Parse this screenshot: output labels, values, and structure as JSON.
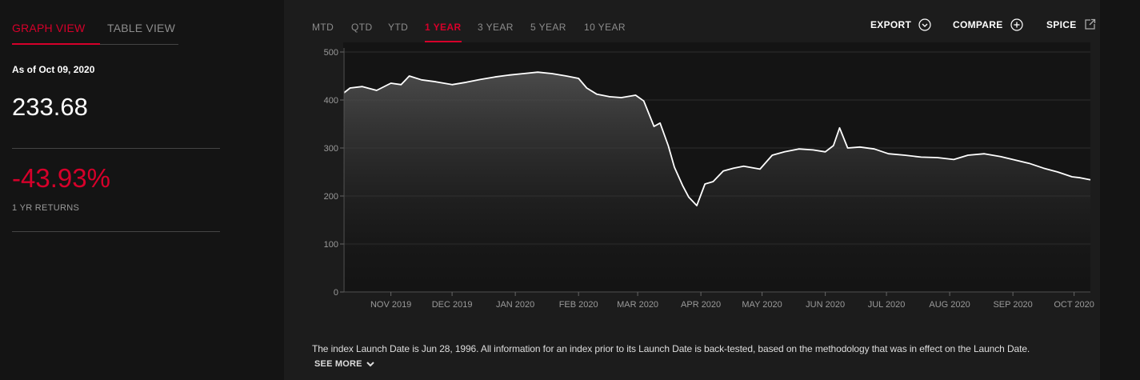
{
  "view_tabs": [
    {
      "label": "GRAPH VIEW",
      "active": true
    },
    {
      "label": "TABLE VIEW",
      "active": false
    }
  ],
  "summary": {
    "as_of": "As of Oct 09, 2020",
    "value": "233.68",
    "returns": "-43.93%",
    "returns_label": "1 YR RETURNS"
  },
  "period_tabs": [
    {
      "label": "MTD",
      "active": false
    },
    {
      "label": "QTD",
      "active": false
    },
    {
      "label": "YTD",
      "active": false
    },
    {
      "label": "1 YEAR",
      "active": true
    },
    {
      "label": "3 YEAR",
      "active": false
    },
    {
      "label": "5 YEAR",
      "active": false
    },
    {
      "label": "10 YEAR",
      "active": false
    }
  ],
  "actions": [
    {
      "label": "EXPORT",
      "icon": "chevron-circle-icon"
    },
    {
      "label": "COMPARE",
      "icon": "plus-circle-icon"
    },
    {
      "label": "SPICE",
      "icon": "external-link-icon"
    }
  ],
  "colors": {
    "accent": "#d6002a",
    "line": "#ffffff",
    "background": "#141414",
    "panel": "#1c1c1c"
  },
  "chart_data": {
    "type": "line",
    "ylim": [
      0,
      500
    ],
    "yticks": [
      0,
      100,
      200,
      300,
      400,
      500
    ],
    "xtick_labels": [
      "NOV 2019",
      "DEC 2019",
      "JAN 2020",
      "FEB 2020",
      "MAR 2020",
      "APR 2020",
      "MAY 2020",
      "JUN 2020",
      "JUL 2020",
      "AUG 2020",
      "SEP 2020",
      "OCT 2020"
    ],
    "x": [
      "2019-10-09",
      "2019-10-12",
      "2019-10-18",
      "2019-10-25",
      "2019-11-01",
      "2019-11-06",
      "2019-11-10",
      "2019-11-16",
      "2019-11-23",
      "2019-12-01",
      "2019-12-08",
      "2019-12-15",
      "2019-12-22",
      "2019-12-29",
      "2020-01-05",
      "2020-01-12",
      "2020-01-19",
      "2020-01-26",
      "2020-02-01",
      "2020-02-05",
      "2020-02-10",
      "2020-02-16",
      "2020-02-22",
      "2020-02-29",
      "2020-03-04",
      "2020-03-09",
      "2020-03-12",
      "2020-03-16",
      "2020-03-19",
      "2020-03-23",
      "2020-03-26",
      "2020-03-30",
      "2020-04-03",
      "2020-04-07",
      "2020-04-12",
      "2020-04-17",
      "2020-04-22",
      "2020-04-30",
      "2020-05-06",
      "2020-05-12",
      "2020-05-19",
      "2020-05-26",
      "2020-06-01",
      "2020-06-05",
      "2020-06-08",
      "2020-06-12",
      "2020-06-18",
      "2020-06-25",
      "2020-07-02",
      "2020-07-10",
      "2020-07-18",
      "2020-07-26",
      "2020-08-03",
      "2020-08-10",
      "2020-08-18",
      "2020-08-26",
      "2020-09-02",
      "2020-09-09",
      "2020-09-16",
      "2020-09-23",
      "2020-09-30",
      "2020-10-04",
      "2020-10-09"
    ],
    "values": [
      415,
      425,
      428,
      420,
      435,
      432,
      450,
      442,
      438,
      432,
      437,
      443,
      448,
      452,
      455,
      458,
      455,
      450,
      445,
      425,
      412,
      407,
      405,
      410,
      398,
      345,
      352,
      305,
      260,
      222,
      198,
      180,
      225,
      230,
      252,
      258,
      262,
      256,
      285,
      292,
      298,
      296,
      292,
      305,
      342,
      300,
      302,
      298,
      288,
      285,
      281,
      280,
      276,
      285,
      288,
      282,
      275,
      268,
      258,
      250,
      240,
      238,
      233.68
    ]
  },
  "footnote": {
    "text": "The index Launch Date is Jun 28, 1996. All information for an index prior to its Launch Date is back-tested, based on the methodology that was in effect on the Launch Date.",
    "see_more": "SEE MORE"
  }
}
